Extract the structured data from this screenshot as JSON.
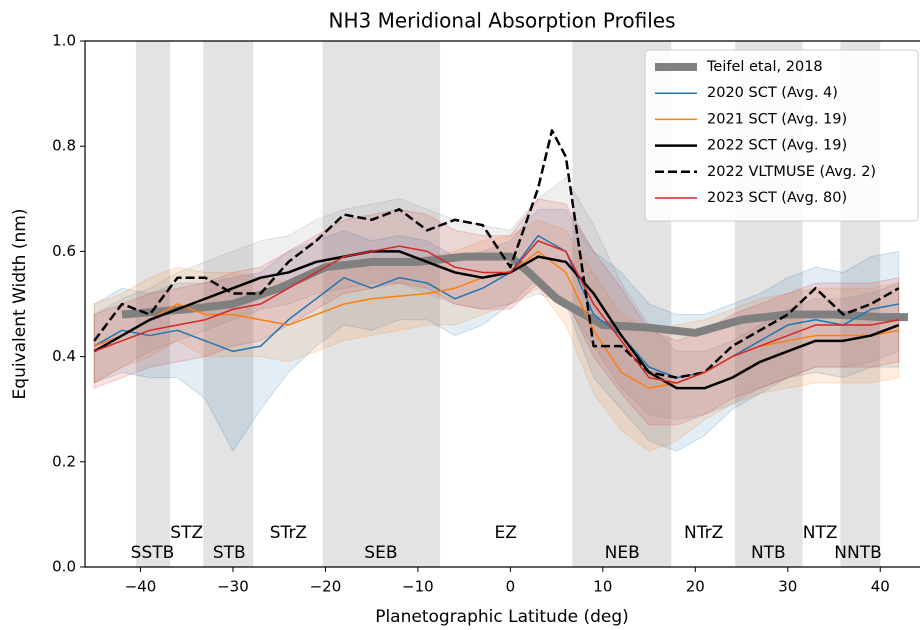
{
  "chart_data": {
    "type": "line",
    "title": "NH3 Meridional Absorption Profiles",
    "xlabel": "Planetographic Latitude (deg)",
    "ylabel": "Equivalent Width (nm)",
    "xlim": [
      -46,
      44.3
    ],
    "ylim": [
      0,
      1
    ],
    "xticks": [
      {
        "value": -40,
        "label": "−40"
      },
      {
        "value": -30,
        "label": "−30"
      },
      {
        "value": -20,
        "label": "−20"
      },
      {
        "value": -10,
        "label": "−10"
      },
      0,
      10,
      20,
      30,
      40
    ],
    "yticks": [
      {
        "value": 0,
        "label": "0.0"
      },
      {
        "value": 0.2,
        "label": "0.2"
      },
      {
        "value": 0.4,
        "label": "0.4"
      },
      {
        "value": 0.6,
        "label": "0.6"
      },
      {
        "value": 0.8,
        "label": "0.8"
      },
      {
        "value": 1,
        "label": "1.0"
      }
    ],
    "legend": "upper right",
    "regions": [
      [
        -40.5,
        -36.8
      ],
      [
        -33.2,
        -27.8
      ],
      [
        -20.3,
        -7.6
      ],
      [
        6.7,
        17.4
      ],
      [
        24.3,
        31.6
      ],
      [
        35.7,
        40
      ]
    ],
    "zones": [
      {
        "label": "SSTB",
        "x": -38.7,
        "y": 0.027
      },
      {
        "label": "STZ",
        "x": -35,
        "y": 0.065
      },
      {
        "label": "STB",
        "x": -30.4,
        "y": 0.027
      },
      {
        "label": "STrZ",
        "x": -24,
        "y": 0.065
      },
      {
        "label": "SEB",
        "x": -14,
        "y": 0.027
      },
      {
        "label": "EZ",
        "x": -0.5,
        "y": 0.065
      },
      {
        "label": "NEB",
        "x": 12.1,
        "y": 0.027
      },
      {
        "label": "NTrZ",
        "x": 20.9,
        "y": 0.065
      },
      {
        "label": "NTB",
        "x": 27.9,
        "y": 0.027
      },
      {
        "label": "NTZ",
        "x": 33.5,
        "y": 0.065
      },
      {
        "label": "NNTB",
        "x": 37.6,
        "y": 0.027
      }
    ],
    "x": [
      -45,
      -42,
      -39,
      -36,
      -33,
      -30,
      -27,
      -24,
      -21,
      -18,
      -15,
      -12,
      -9,
      -6,
      -3,
      0,
      3,
      6,
      9,
      12,
      15,
      18,
      21,
      24,
      27,
      30,
      33,
      36,
      39,
      42
    ],
    "series": [
      {
        "name": "Teifel etal, 2018",
        "color": "#808080",
        "width": 8,
        "x": [
          -42,
          -35,
          -30,
          -25,
          -20,
          -15,
          -10,
          -5,
          0,
          2,
          5,
          10,
          15,
          20,
          25,
          30,
          35,
          40,
          43
        ],
        "values": [
          0.48,
          0.49,
          0.5,
          0.53,
          0.57,
          0.58,
          0.58,
          0.59,
          0.59,
          0.56,
          0.51,
          0.46,
          0.455,
          0.445,
          0.47,
          0.48,
          0.48,
          0.475,
          0.475
        ]
      },
      {
        "name": "2020 SCT (Avg. 4)",
        "color": "#1f77b4",
        "width": 1.5,
        "values": [
          0.42,
          0.45,
          0.44,
          0.45,
          0.43,
          0.41,
          0.42,
          0.47,
          0.51,
          0.55,
          0.53,
          0.55,
          0.54,
          0.51,
          0.53,
          0.56,
          0.63,
          0.6,
          0.48,
          0.44,
          0.38,
          0.36,
          0.37,
          0.4,
          0.43,
          0.46,
          0.47,
          0.46,
          0.49,
          0.5
        ],
        "band_low": [
          0.35,
          0.37,
          0.36,
          0.36,
          0.32,
          0.22,
          0.3,
          0.37,
          0.42,
          0.46,
          0.45,
          0.47,
          0.47,
          0.44,
          0.46,
          0.5,
          0.55,
          0.5,
          0.36,
          0.3,
          0.24,
          0.22,
          0.25,
          0.3,
          0.33,
          0.36,
          0.37,
          0.36,
          0.38,
          0.38
        ],
        "band_high": [
          0.5,
          0.53,
          0.52,
          0.54,
          0.54,
          0.55,
          0.56,
          0.6,
          0.62,
          0.64,
          0.62,
          0.63,
          0.62,
          0.59,
          0.6,
          0.62,
          0.68,
          0.68,
          0.6,
          0.56,
          0.5,
          0.48,
          0.48,
          0.5,
          0.52,
          0.55,
          0.57,
          0.56,
          0.59,
          0.6
        ]
      },
      {
        "name": "2021 SCT (Avg. 19)",
        "color": "#ff7f0e",
        "width": 1.5,
        "values": [
          0.42,
          0.44,
          0.47,
          0.5,
          0.48,
          0.48,
          0.47,
          0.46,
          0.48,
          0.5,
          0.51,
          0.515,
          0.52,
          0.53,
          0.55,
          0.56,
          0.6,
          0.56,
          0.45,
          0.37,
          0.34,
          0.35,
          0.37,
          0.4,
          0.42,
          0.43,
          0.44,
          0.44,
          0.44,
          0.45
        ],
        "band_low": [
          0.35,
          0.38,
          0.4,
          0.43,
          0.4,
          0.4,
          0.4,
          0.39,
          0.41,
          0.43,
          0.44,
          0.45,
          0.46,
          0.46,
          0.48,
          0.5,
          0.53,
          0.46,
          0.33,
          0.26,
          0.22,
          0.24,
          0.28,
          0.31,
          0.33,
          0.34,
          0.35,
          0.35,
          0.35,
          0.36
        ],
        "band_high": [
          0.5,
          0.52,
          0.55,
          0.57,
          0.56,
          0.56,
          0.55,
          0.54,
          0.55,
          0.57,
          0.58,
          0.58,
          0.59,
          0.6,
          0.62,
          0.63,
          0.66,
          0.64,
          0.56,
          0.48,
          0.45,
          0.46,
          0.47,
          0.49,
          0.51,
          0.52,
          0.53,
          0.53,
          0.53,
          0.54
        ]
      },
      {
        "name": "2022 SCT (Avg. 19)",
        "color": "#000000",
        "band_color": "#808080",
        "width": 2.5,
        "values": [
          0.41,
          0.44,
          0.47,
          0.49,
          0.51,
          0.53,
          0.55,
          0.56,
          0.58,
          0.59,
          0.6,
          0.6,
          0.58,
          0.56,
          0.55,
          0.56,
          0.59,
          0.58,
          0.52,
          0.44,
          0.37,
          0.34,
          0.34,
          0.36,
          0.39,
          0.41,
          0.43,
          0.43,
          0.44,
          0.46
        ],
        "band_low": [
          0.35,
          0.38,
          0.41,
          0.43,
          0.45,
          0.47,
          0.49,
          0.5,
          0.52,
          0.53,
          0.54,
          0.54,
          0.52,
          0.5,
          0.49,
          0.5,
          0.52,
          0.5,
          0.42,
          0.34,
          0.29,
          0.28,
          0.29,
          0.31,
          0.34,
          0.36,
          0.38,
          0.38,
          0.39,
          0.41
        ],
        "band_high": [
          0.48,
          0.51,
          0.53,
          0.56,
          0.58,
          0.6,
          0.62,
          0.63,
          0.66,
          0.68,
          0.69,
          0.7,
          0.68,
          0.66,
          0.65,
          0.64,
          0.7,
          0.74,
          0.65,
          0.54,
          0.46,
          0.41,
          0.41,
          0.43,
          0.46,
          0.49,
          0.51,
          0.51,
          0.52,
          0.54
        ]
      },
      {
        "name": "2022 VLTMUSE (Avg. 2)",
        "color": "#000000",
        "width": 2.5,
        "dashed": true,
        "x": [
          -45,
          -42,
          -39,
          -36,
          -33,
          -30,
          -27,
          -24,
          -21,
          -18,
          -15,
          -12,
          -9,
          -6,
          -3,
          0,
          3,
          4.5,
          6,
          9,
          12,
          15,
          18,
          21,
          24,
          27,
          30,
          33,
          36,
          39,
          42
        ],
        "values": [
          0.43,
          0.5,
          0.48,
          0.55,
          0.55,
          0.52,
          0.52,
          0.58,
          0.62,
          0.67,
          0.66,
          0.68,
          0.64,
          0.66,
          0.65,
          0.57,
          0.72,
          0.83,
          0.78,
          0.42,
          0.42,
          0.37,
          0.36,
          0.37,
          0.42,
          0.45,
          0.48,
          0.53,
          0.48,
          0.5,
          0.53
        ]
      },
      {
        "name": "2023 SCT (Avg. 80)",
        "color": "#d62728",
        "width": 1.5,
        "values": [
          0.41,
          0.43,
          0.45,
          0.46,
          0.47,
          0.49,
          0.5,
          0.53,
          0.56,
          0.59,
          0.6,
          0.61,
          0.6,
          0.57,
          0.56,
          0.56,
          0.62,
          0.6,
          0.5,
          0.43,
          0.36,
          0.35,
          0.37,
          0.4,
          0.42,
          0.44,
          0.46,
          0.46,
          0.46,
          0.47
        ],
        "band_low": [
          0.34,
          0.36,
          0.38,
          0.39,
          0.4,
          0.42,
          0.43,
          0.46,
          0.49,
          0.52,
          0.53,
          0.54,
          0.53,
          0.5,
          0.49,
          0.49,
          0.54,
          0.51,
          0.4,
          0.33,
          0.27,
          0.27,
          0.29,
          0.32,
          0.34,
          0.36,
          0.38,
          0.38,
          0.38,
          0.39
        ],
        "band_high": [
          0.48,
          0.5,
          0.52,
          0.53,
          0.54,
          0.56,
          0.57,
          0.6,
          0.63,
          0.66,
          0.67,
          0.68,
          0.67,
          0.64,
          0.63,
          0.63,
          0.7,
          0.69,
          0.6,
          0.53,
          0.45,
          0.43,
          0.45,
          0.48,
          0.5,
          0.52,
          0.54,
          0.54,
          0.54,
          0.55
        ]
      }
    ]
  }
}
